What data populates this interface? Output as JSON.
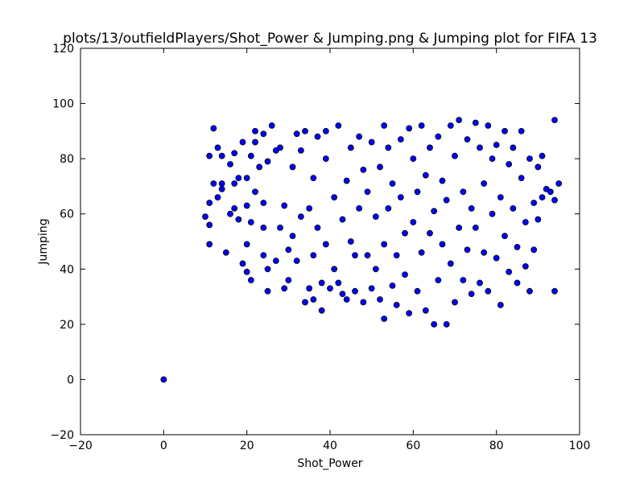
{
  "chart_data": {
    "type": "scatter",
    "title": "plots/13/outfieldPlayers/Shot_Power & Jumping.png & Jumping plot for FIFA 13",
    "xlabel": "Shot_Power",
    "ylabel": "Jumping",
    "xlim": [
      -20,
      100
    ],
    "ylim": [
      -20,
      120
    ],
    "xticks": [
      "−20",
      "0",
      "20",
      "40",
      "60",
      "80",
      "100"
    ],
    "yticks": [
      "−20",
      "0",
      "20",
      "40",
      "60",
      "80",
      "100",
      "120"
    ],
    "grid": false,
    "marker_color": "#0000ff",
    "marker_edge_color": "#000000",
    "series": [
      {
        "points": [
          [
            0,
            0
          ],
          [
            10,
            59
          ],
          [
            11,
            49
          ],
          [
            11,
            56
          ],
          [
            11,
            64
          ],
          [
            11,
            81
          ],
          [
            12,
            71
          ],
          [
            12,
            91
          ],
          [
            13,
            84
          ],
          [
            13,
            66
          ],
          [
            14,
            81
          ],
          [
            14,
            71
          ],
          [
            14,
            69
          ],
          [
            15,
            46
          ],
          [
            16,
            78
          ],
          [
            16,
            60
          ],
          [
            17,
            82
          ],
          [
            17,
            62
          ],
          [
            17,
            71
          ],
          [
            18,
            73
          ],
          [
            18,
            58
          ],
          [
            19,
            86
          ],
          [
            19,
            42
          ],
          [
            20,
            63
          ],
          [
            20,
            73
          ],
          [
            20,
            39
          ],
          [
            20,
            49
          ],
          [
            21,
            81
          ],
          [
            21,
            36
          ],
          [
            21,
            57
          ],
          [
            22,
            86
          ],
          [
            22,
            68
          ],
          [
            22,
            90
          ],
          [
            23,
            77
          ],
          [
            24,
            45
          ],
          [
            24,
            55
          ],
          [
            24,
            64
          ],
          [
            24,
            89
          ],
          [
            25,
            79
          ],
          [
            25,
            32
          ],
          [
            25,
            40
          ],
          [
            26,
            92
          ],
          [
            27,
            83
          ],
          [
            27,
            43
          ],
          [
            28,
            84
          ],
          [
            28,
            55
          ],
          [
            29,
            63
          ],
          [
            29,
            33
          ],
          [
            30,
            36
          ],
          [
            30,
            47
          ],
          [
            31,
            52
          ],
          [
            31,
            77
          ],
          [
            32,
            89
          ],
          [
            32,
            43
          ],
          [
            33,
            83
          ],
          [
            33,
            59
          ],
          [
            34,
            90
          ],
          [
            34,
            28
          ],
          [
            35,
            62
          ],
          [
            35,
            33
          ],
          [
            36,
            29
          ],
          [
            36,
            73
          ],
          [
            36,
            45
          ],
          [
            37,
            55
          ],
          [
            37,
            88
          ],
          [
            38,
            25
          ],
          [
            38,
            35
          ],
          [
            39,
            90
          ],
          [
            39,
            80
          ],
          [
            39,
            49
          ],
          [
            40,
            33
          ],
          [
            41,
            66
          ],
          [
            41,
            40
          ],
          [
            42,
            92
          ],
          [
            42,
            35
          ],
          [
            43,
            58
          ],
          [
            43,
            31
          ],
          [
            44,
            29
          ],
          [
            44,
            72
          ],
          [
            45,
            84
          ],
          [
            45,
            50
          ],
          [
            46,
            45
          ],
          [
            46,
            32
          ],
          [
            47,
            88
          ],
          [
            47,
            62
          ],
          [
            48,
            28
          ],
          [
            48,
            76
          ],
          [
            49,
            45
          ],
          [
            49,
            68
          ],
          [
            50,
            33
          ],
          [
            50,
            86
          ],
          [
            51,
            59
          ],
          [
            51,
            40
          ],
          [
            52,
            77
          ],
          [
            52,
            29
          ],
          [
            53,
            22
          ],
          [
            53,
            49
          ],
          [
            53,
            92
          ],
          [
            54,
            84
          ],
          [
            54,
            62
          ],
          [
            55,
            34
          ],
          [
            55,
            71
          ],
          [
            56,
            27
          ],
          [
            56,
            45
          ],
          [
            57,
            87
          ],
          [
            57,
            66
          ],
          [
            58,
            53
          ],
          [
            58,
            38
          ],
          [
            59,
            91
          ],
          [
            59,
            24
          ],
          [
            60,
            80
          ],
          [
            60,
            57
          ],
          [
            61,
            68
          ],
          [
            61,
            32
          ],
          [
            62,
            92
          ],
          [
            62,
            46
          ],
          [
            63,
            25
          ],
          [
            63,
            74
          ],
          [
            64,
            84
          ],
          [
            64,
            53
          ],
          [
            65,
            20
          ],
          [
            65,
            61
          ],
          [
            66,
            36
          ],
          [
            66,
            88
          ],
          [
            67,
            72
          ],
          [
            67,
            49
          ],
          [
            68,
            20
          ],
          [
            68,
            65
          ],
          [
            69,
            92
          ],
          [
            69,
            42
          ],
          [
            70,
            81
          ],
          [
            70,
            28
          ],
          [
            71,
            55
          ],
          [
            71,
            94
          ],
          [
            72,
            36
          ],
          [
            72,
            68
          ],
          [
            73,
            87
          ],
          [
            73,
            47
          ],
          [
            74,
            31
          ],
          [
            74,
            62
          ],
          [
            75,
            93
          ],
          [
            75,
            55
          ],
          [
            76,
            84
          ],
          [
            76,
            35
          ],
          [
            77,
            71
          ],
          [
            77,
            46
          ],
          [
            78,
            92
          ],
          [
            78,
            32
          ],
          [
            79,
            60
          ],
          [
            79,
            80
          ],
          [
            80,
            44
          ],
          [
            80,
            85
          ],
          [
            81,
            27
          ],
          [
            81,
            66
          ],
          [
            82,
            90
          ],
          [
            82,
            52
          ],
          [
            83,
            78
          ],
          [
            83,
            39
          ],
          [
            84,
            62
          ],
          [
            84,
            84
          ],
          [
            85,
            35
          ],
          [
            85,
            48
          ],
          [
            86,
            73
          ],
          [
            86,
            90
          ],
          [
            87,
            57
          ],
          [
            87,
            41
          ],
          [
            88,
            80
          ],
          [
            88,
            32
          ],
          [
            89,
            64
          ],
          [
            89,
            47
          ],
          [
            90,
            77
          ],
          [
            90,
            58
          ],
          [
            91,
            81
          ],
          [
            91,
            66
          ],
          [
            92,
            69
          ],
          [
            93,
            68
          ],
          [
            94,
            94
          ],
          [
            94,
            32
          ],
          [
            94,
            65
          ],
          [
            95,
            71
          ]
        ]
      }
    ]
  }
}
